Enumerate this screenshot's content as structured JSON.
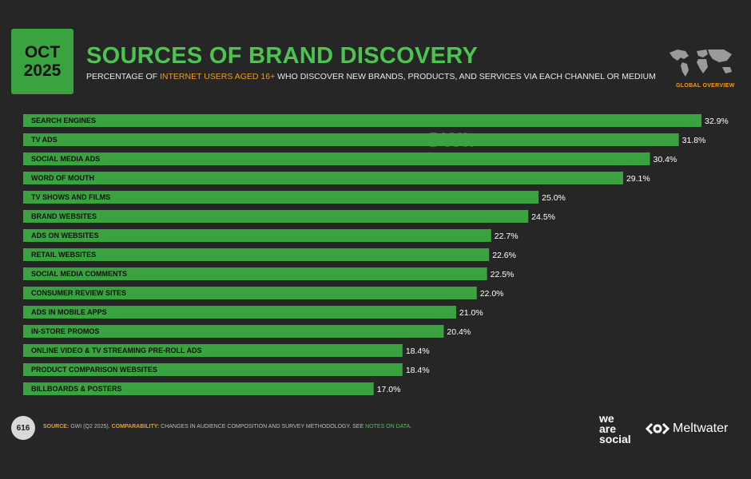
{
  "badge": {
    "month": "OCT",
    "year": "2025"
  },
  "header": {
    "title": "SOURCES OF BRAND DISCOVERY",
    "subtitle_pre": "PERCENTAGE OF ",
    "subtitle_highlight": "INTERNET USERS AGED 16+",
    "subtitle_post": " WHO DISCOVER NEW BRANDS, PRODUCTS, AND SERVICES VIA EACH CHANNEL OR MEDIUM",
    "region_label": "GLOBAL OVERVIEW"
  },
  "watermark": {
    "datareportal": "DATAREPORTAL",
    "gwi": "GWI."
  },
  "chart_data": {
    "type": "bar",
    "orientation": "horizontal",
    "title": "SOURCES OF BRAND DISCOVERY",
    "categories": [
      "SEARCH ENGINES",
      "TV ADS",
      "SOCIAL MEDIA ADS",
      "WORD OF MOUTH",
      "TV SHOWS AND FILMS",
      "BRAND WEBSITES",
      "ADS ON WEBSITES",
      "RETAIL WEBSITES",
      "SOCIAL MEDIA COMMENTS",
      "CONSUMER REVIEW SITES",
      "ADS IN MOBILE APPS",
      "IN-STORE PROMOS",
      "ONLINE VIDEO & TV STREAMING PRE-ROLL ADS",
      "PRODUCT COMPARISON WEBSITES",
      "BILLBOARDS & POSTERS"
    ],
    "values": [
      32.9,
      31.8,
      30.4,
      29.1,
      25.0,
      24.5,
      22.7,
      22.6,
      22.5,
      22.0,
      21.0,
      20.4,
      18.4,
      18.4,
      17.0
    ],
    "value_labels": [
      "32.9%",
      "31.8%",
      "30.4%",
      "29.1%",
      "25.0%",
      "24.5%",
      "22.7%",
      "22.6%",
      "22.5%",
      "22.0%",
      "21.0%",
      "20.4%",
      "18.4%",
      "18.4%",
      "17.0%"
    ],
    "unit": "%",
    "bar_color": "#3aa33f"
  },
  "footer": {
    "page_number": "616",
    "source_key": "SOURCE:",
    "source_text": " GWI (Q2 2025). ",
    "comparability_key": "COMPARABILITY:",
    "comparability_text": " CHANGES IN AUDIENCE COMPOSITION AND SURVEY METHODOLOGY. SEE ",
    "notes_link": "NOTES ON DATA",
    "notes_end": ".",
    "logo_we": "we",
    "logo_are": "are",
    "logo_social": "social",
    "logo_meltwater": "Meltwater"
  },
  "colors": {
    "accent": "#4cc550",
    "bar": "#3aa33f",
    "highlight": "#f29b1e",
    "background": "#262626"
  }
}
